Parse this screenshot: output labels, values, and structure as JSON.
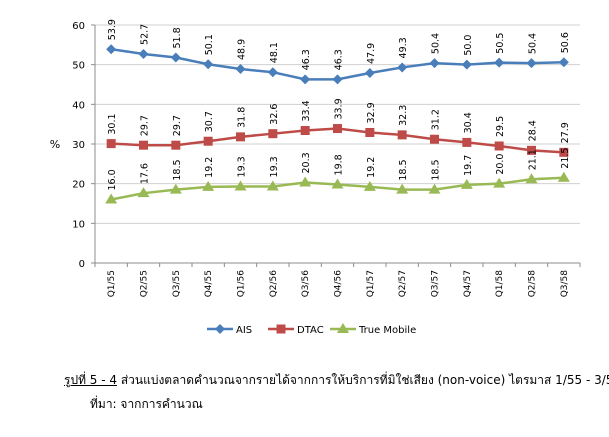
{
  "chart_data": {
    "type": "line",
    "categories": [
      "Q1/55",
      "Q2/55",
      "Q3/55",
      "Q4/55",
      "Q1/56",
      "Q2/56",
      "Q3/56",
      "Q4/56",
      "Q1/57",
      "Q2/57",
      "Q3/57",
      "Q4/57",
      "Q1/58",
      "Q2/58",
      "Q3/58"
    ],
    "series": [
      {
        "name": "AIS",
        "color": "#4a7ebb",
        "marker": "diamond",
        "values": [
          53.9,
          52.7,
          51.8,
          50.1,
          48.9,
          48.1,
          46.3,
          46.3,
          47.9,
          49.3,
          50.4,
          50.0,
          50.5,
          50.4,
          50.6
        ]
      },
      {
        "name": "DTAC",
        "color": "#be4b48",
        "marker": "square",
        "values": [
          30.1,
          29.7,
          29.7,
          30.7,
          31.8,
          32.6,
          33.4,
          33.9,
          32.9,
          32.3,
          31.2,
          30.4,
          29.5,
          28.4,
          27.9
        ]
      },
      {
        "name": "True Mobile",
        "color": "#98b954",
        "marker": "triangle",
        "values": [
          16.0,
          17.6,
          18.5,
          19.2,
          19.3,
          19.3,
          20.3,
          19.8,
          19.2,
          18.5,
          18.5,
          19.7,
          20.0,
          21.1,
          21.5
        ]
      }
    ],
    "labels": {
      "AIS": [
        "53.9",
        "52.7",
        "51.8",
        "50.1",
        "48.9",
        "48.1",
        "46.3",
        "46.3",
        "47.9",
        "49.3",
        "50.4",
        "50.0",
        "50.5",
        "50.4",
        "50.6"
      ],
      "DTAC": [
        "30.1",
        "29.7",
        "29.7",
        "30.7",
        "31.8",
        "32.6",
        "33.4",
        "33.9",
        "32.9",
        "32.3",
        "31.2",
        "30.4",
        "29.5",
        "28.4",
        "27.9"
      ],
      "True Mobile": [
        "16.0",
        "17.6",
        "18.5",
        "19.2",
        "19.3",
        "19.3",
        "20.3",
        "19.8",
        "19.2",
        "18.5",
        "18.5",
        "19.7",
        "20.0",
        "21.1",
        "21.5"
      ]
    },
    "ylabel": "%",
    "ylim": [
      0,
      60
    ],
    "yticks": [
      0,
      10,
      20,
      30,
      40,
      50,
      60
    ],
    "ytick_labels": [
      "0",
      "10",
      "20",
      "30",
      "40",
      "50",
      "60"
    ],
    "grid": true,
    "legend": "bottom"
  },
  "caption": {
    "figure_label": "รูปที่ 5 - 4",
    "title": " ส่วนแบ่งตลาดคำนวณจากรายได้จากการให้บริการที่มิใช่เสียง (non-voice) ไตรมาส 1/55 - 3/58",
    "source": "ที่มา: จากการคำนวณ"
  }
}
